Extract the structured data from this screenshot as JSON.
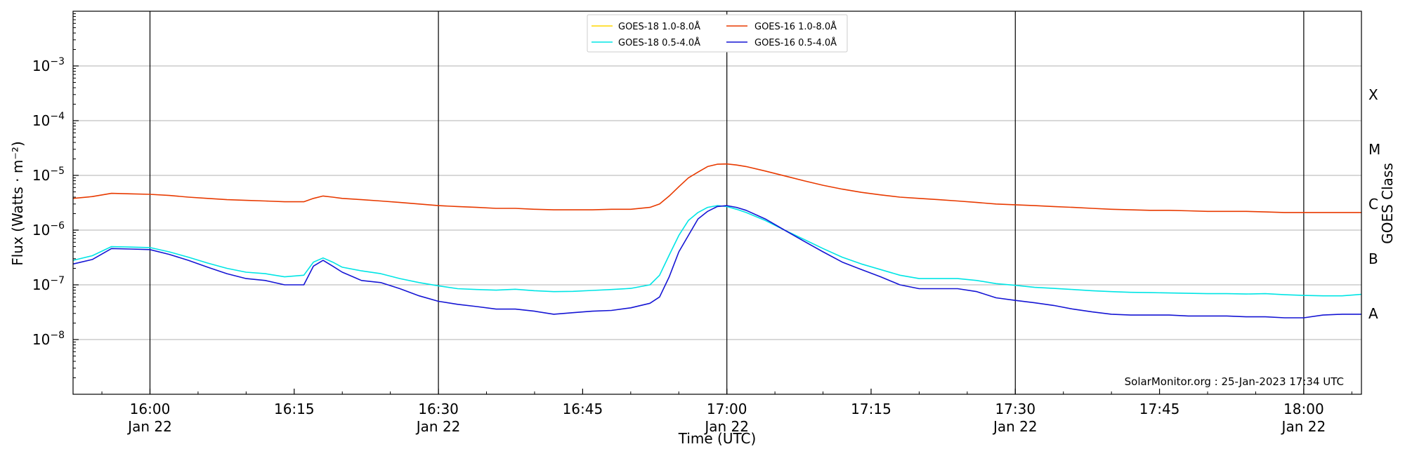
{
  "chart_data": {
    "type": "line",
    "xlabel": "Time (UTC)",
    "ylabel": "Flux (Watts · m⁻²)",
    "y2label": "GOES Class",
    "yscale": "log",
    "ylim": [
      1e-09,
      0.01
    ],
    "xlim": [
      "15:52",
      "18:06"
    ],
    "x_ticks": [
      {
        "time": "16:00",
        "label": "16:00",
        "sublabel": "Jan 22"
      },
      {
        "time": "16:15",
        "label": "16:15",
        "sublabel": ""
      },
      {
        "time": "16:30",
        "label": "16:30",
        "sublabel": "Jan 22"
      },
      {
        "time": "16:45",
        "label": "16:45",
        "sublabel": ""
      },
      {
        "time": "17:00",
        "label": "17:00",
        "sublabel": "Jan 22"
      },
      {
        "time": "17:15",
        "label": "17:15",
        "sublabel": ""
      },
      {
        "time": "17:30",
        "label": "17:30",
        "sublabel": "Jan 22"
      },
      {
        "time": "17:45",
        "label": "17:45",
        "sublabel": ""
      },
      {
        "time": "18:00",
        "label": "18:00",
        "sublabel": "Jan 22"
      }
    ],
    "day_boundaries": [
      "16:00",
      "16:30",
      "17:00",
      "17:30",
      "18:00"
    ],
    "y_ticks": [
      {
        "value": 1e-08,
        "base": "10",
        "exp": "−8"
      },
      {
        "value": 1e-07,
        "base": "10",
        "exp": "−7"
      },
      {
        "value": 1e-06,
        "base": "10",
        "exp": "−6"
      },
      {
        "value": 1e-05,
        "base": "10",
        "exp": "−5"
      },
      {
        "value": 0.0001,
        "base": "10",
        "exp": "−4"
      },
      {
        "value": 0.001,
        "base": "10",
        "exp": "−3"
      }
    ],
    "goes_classes": [
      {
        "label": "A",
        "value": 3e-08
      },
      {
        "label": "B",
        "value": 3e-07
      },
      {
        "label": "C",
        "value": 3e-06
      },
      {
        "label": "M",
        "value": 3e-05
      },
      {
        "label": "X",
        "value": 0.0003
      }
    ],
    "grid": true,
    "legend_position": "top-center",
    "credit": "SolarMonitor.org : 25-Jan-2023 17:34 UTC",
    "series": [
      {
        "name": "GOES-18 1.0-8.0Å",
        "color": "#ffd700",
        "times": [],
        "values": []
      },
      {
        "name": "GOES-18 0.5-4.0Å",
        "color": "#00e5e5",
        "times": [
          "15:52",
          "15:54",
          "15:56",
          "15:58",
          "16:00",
          "16:02",
          "16:04",
          "16:06",
          "16:08",
          "16:10",
          "16:12",
          "16:14",
          "16:16",
          "16:17",
          "16:18",
          "16:19",
          "16:20",
          "16:22",
          "16:24",
          "16:26",
          "16:28",
          "16:30",
          "16:32",
          "16:34",
          "16:36",
          "16:38",
          "16:40",
          "16:42",
          "16:44",
          "16:46",
          "16:48",
          "16:50",
          "16:52",
          "16:53",
          "16:54",
          "16:55",
          "16:56",
          "16:57",
          "16:58",
          "16:59",
          "17:00",
          "17:01",
          "17:02",
          "17:04",
          "17:06",
          "17:08",
          "17:10",
          "17:12",
          "17:14",
          "17:16",
          "17:18",
          "17:20",
          "17:22",
          "17:24",
          "17:26",
          "17:28",
          "17:30",
          "17:32",
          "17:34",
          "17:36",
          "17:38",
          "17:40",
          "17:42",
          "17:44",
          "17:46",
          "17:48",
          "17:50",
          "17:52",
          "17:54",
          "17:56",
          "17:58",
          "18:00",
          "18:02",
          "18:04",
          "18:06"
        ],
        "values": [
          2.8e-07,
          3.4e-07,
          5e-07,
          4.9e-07,
          4.8e-07,
          4e-07,
          3.2e-07,
          2.5e-07,
          2e-07,
          1.7e-07,
          1.6e-07,
          1.4e-07,
          1.5e-07,
          2.6e-07,
          3.1e-07,
          2.6e-07,
          2.1e-07,
          1.8e-07,
          1.6e-07,
          1.3e-07,
          1.1e-07,
          9.6e-08,
          8.5e-08,
          8.2e-08,
          8e-08,
          8.3e-08,
          7.8e-08,
          7.5e-08,
          7.6e-08,
          7.9e-08,
          8.2e-08,
          8.6e-08,
          1e-07,
          1.5e-07,
          3.5e-07,
          8e-07,
          1.5e-06,
          2.1e-06,
          2.6e-06,
          2.8e-06,
          2.7e-06,
          2.4e-06,
          2.1e-06,
          1.5e-06,
          1e-06,
          6.8e-07,
          4.6e-07,
          3.2e-07,
          2.4e-07,
          1.9e-07,
          1.5e-07,
          1.3e-07,
          1.3e-07,
          1.3e-07,
          1.2e-07,
          1.05e-07,
          9.8e-08,
          9e-08,
          8.6e-08,
          8.2e-08,
          7.8e-08,
          7.5e-08,
          7.3e-08,
          7.2e-08,
          7.1e-08,
          7e-08,
          6.9e-08,
          6.9e-08,
          6.8e-08,
          6.9e-08,
          6.6e-08,
          6.4e-08,
          6.3e-08,
          6.3e-08,
          6.7e-08
        ]
      },
      {
        "name": "GOES-16 1.0-8.0Å",
        "color": "#e83a00",
        "times": [
          "15:52",
          "15:54",
          "15:56",
          "15:58",
          "16:00",
          "16:02",
          "16:04",
          "16:06",
          "16:08",
          "16:10",
          "16:12",
          "16:14",
          "16:16",
          "16:17",
          "16:18",
          "16:19",
          "16:20",
          "16:22",
          "16:24",
          "16:26",
          "16:28",
          "16:30",
          "16:32",
          "16:34",
          "16:36",
          "16:38",
          "16:40",
          "16:42",
          "16:44",
          "16:46",
          "16:48",
          "16:50",
          "16:52",
          "16:53",
          "16:54",
          "16:55",
          "16:56",
          "16:57",
          "16:58",
          "16:59",
          "17:00",
          "17:01",
          "17:02",
          "17:04",
          "17:06",
          "17:08",
          "17:10",
          "17:12",
          "17:14",
          "17:16",
          "17:18",
          "17:20",
          "17:22",
          "17:24",
          "17:26",
          "17:28",
          "17:30",
          "17:32",
          "17:34",
          "17:36",
          "17:38",
          "17:40",
          "17:42",
          "17:44",
          "17:46",
          "17:48",
          "17:50",
          "17:52",
          "17:54",
          "17:56",
          "17:58",
          "18:00",
          "18:02",
          "18:04",
          "18:06"
        ],
        "values": [
          3.8e-06,
          4.1e-06,
          4.7e-06,
          4.6e-06,
          4.5e-06,
          4.3e-06,
          4e-06,
          3.8e-06,
          3.6e-06,
          3.5e-06,
          3.4e-06,
          3.3e-06,
          3.3e-06,
          3.8e-06,
          4.2e-06,
          4e-06,
          3.8e-06,
          3.6e-06,
          3.4e-06,
          3.2e-06,
          3e-06,
          2.8e-06,
          2.7e-06,
          2.6e-06,
          2.5e-06,
          2.5e-06,
          2.4e-06,
          2.35e-06,
          2.35e-06,
          2.35e-06,
          2.4e-06,
          2.4e-06,
          2.6e-06,
          3e-06,
          4.2e-06,
          6.2e-06,
          9e-06,
          1.15e-05,
          1.45e-05,
          1.6e-05,
          1.62e-05,
          1.55e-05,
          1.45e-05,
          1.2e-05,
          9.8e-06,
          8e-06,
          6.6e-06,
          5.6e-06,
          4.9e-06,
          4.4e-06,
          4e-06,
          3.8e-06,
          3.6e-06,
          3.4e-06,
          3.2e-06,
          3e-06,
          2.9e-06,
          2.8e-06,
          2.7e-06,
          2.6e-06,
          2.5e-06,
          2.4e-06,
          2.35e-06,
          2.3e-06,
          2.3e-06,
          2.25e-06,
          2.2e-06,
          2.2e-06,
          2.2e-06,
          2.15e-06,
          2.1e-06,
          2.1e-06,
          2.1e-06,
          2.1e-06,
          2.1e-06
        ]
      },
      {
        "name": "GOES-16 0.5-4.0Å",
        "color": "#1515d4",
        "times": [
          "15:52",
          "15:54",
          "15:56",
          "15:58",
          "16:00",
          "16:02",
          "16:04",
          "16:06",
          "16:08",
          "16:10",
          "16:12",
          "16:14",
          "16:16",
          "16:17",
          "16:18",
          "16:19",
          "16:20",
          "16:22",
          "16:24",
          "16:26",
          "16:28",
          "16:30",
          "16:32",
          "16:34",
          "16:36",
          "16:38",
          "16:40",
          "16:42",
          "16:44",
          "16:46",
          "16:48",
          "16:50",
          "16:52",
          "16:53",
          "16:54",
          "16:55",
          "16:56",
          "16:57",
          "16:58",
          "16:59",
          "17:00",
          "17:01",
          "17:02",
          "17:04",
          "17:06",
          "17:08",
          "17:10",
          "17:12",
          "17:14",
          "17:16",
          "17:18",
          "17:20",
          "17:22",
          "17:24",
          "17:26",
          "17:28",
          "17:30",
          "17:32",
          "17:34",
          "17:36",
          "17:38",
          "17:40",
          "17:42",
          "17:44",
          "17:46",
          "17:48",
          "17:50",
          "17:52",
          "17:54",
          "17:56",
          "17:58",
          "18:00",
          "18:02",
          "18:04",
          "18:06"
        ],
        "values": [
          2.4e-07,
          2.9e-07,
          4.6e-07,
          4.5e-07,
          4.4e-07,
          3.6e-07,
          2.8e-07,
          2.1e-07,
          1.6e-07,
          1.3e-07,
          1.2e-07,
          1e-07,
          1e-07,
          2.2e-07,
          2.8e-07,
          2.2e-07,
          1.7e-07,
          1.2e-07,
          1.1e-07,
          8.5e-08,
          6.3e-08,
          5e-08,
          4.4e-08,
          4e-08,
          3.6e-08,
          3.6e-08,
          3.3e-08,
          2.9e-08,
          3.1e-08,
          3.3e-08,
          3.4e-08,
          3.8e-08,
          4.6e-08,
          6e-08,
          1.4e-07,
          4e-07,
          8e-07,
          1.6e-06,
          2.2e-06,
          2.7e-06,
          2.8e-06,
          2.6e-06,
          2.3e-06,
          1.6e-06,
          1e-06,
          6.3e-07,
          4e-07,
          2.6e-07,
          1.9e-07,
          1.4e-07,
          1e-07,
          8.5e-08,
          8.5e-08,
          8.5e-08,
          7.5e-08,
          5.8e-08,
          5.2e-08,
          4.7e-08,
          4.2e-08,
          3.6e-08,
          3.2e-08,
          2.9e-08,
          2.8e-08,
          2.8e-08,
          2.8e-08,
          2.7e-08,
          2.7e-08,
          2.7e-08,
          2.6e-08,
          2.6e-08,
          2.5e-08,
          2.5e-08,
          2.8e-08,
          2.9e-08,
          2.9e-08
        ]
      }
    ]
  }
}
